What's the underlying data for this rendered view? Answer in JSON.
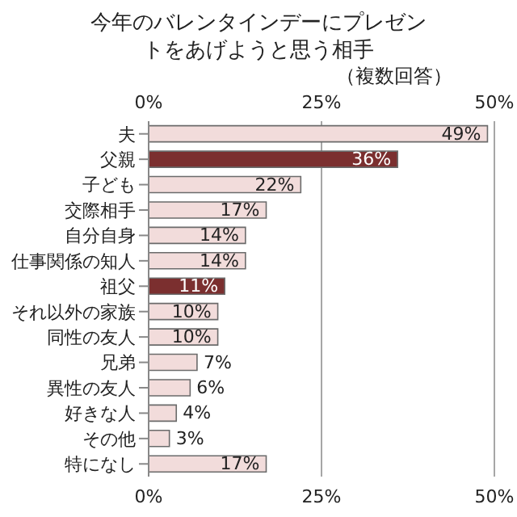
{
  "chart_data": {
    "type": "bar",
    "orientation": "horizontal",
    "title": "今年のバレンタインデーにプレゼントをあげようと思う相手",
    "subtitle": "（複数回答）",
    "categories": [
      "夫",
      "父親",
      "子ども",
      "交際相手",
      "自分自身",
      "仕事関係の知人",
      "祖父",
      "それ以外の家族",
      "同性の友人",
      "兄弟",
      "異性の友人",
      "好きな人",
      "その他",
      "特になし"
    ],
    "values": [
      49,
      36,
      22,
      17,
      14,
      14,
      11,
      10,
      10,
      7,
      6,
      4,
      3,
      17
    ],
    "value_labels": [
      "49%",
      "36%",
      "22%",
      "17%",
      "14%",
      "14%",
      "11%",
      "10%",
      "10%",
      "7%",
      "6%",
      "4%",
      "3%",
      "17%"
    ],
    "colors": [
      "#f2dcdb",
      "#7b2f2f",
      "#f2dcdb",
      "#f2dcdb",
      "#f2dcdb",
      "#f2dcdb",
      "#7b2f2f",
      "#f2dcdb",
      "#f2dcdb",
      "#f2dcdb",
      "#f2dcdb",
      "#f2dcdb",
      "#f2dcdb",
      "#f2dcdb"
    ],
    "xlim": [
      0,
      50
    ],
    "xticks": [
      {
        "value": 0,
        "label": "0%"
      },
      {
        "value": 25,
        "label": "25%"
      },
      {
        "value": 50,
        "label": "50%"
      }
    ],
    "x2lim": [
      0,
      50
    ],
    "x2ticks": [
      {
        "value": 0,
        "label": "0%"
      },
      {
        "value": 25,
        "label": "25%"
      },
      {
        "value": 50,
        "label": "50%"
      }
    ],
    "grid": "x"
  }
}
